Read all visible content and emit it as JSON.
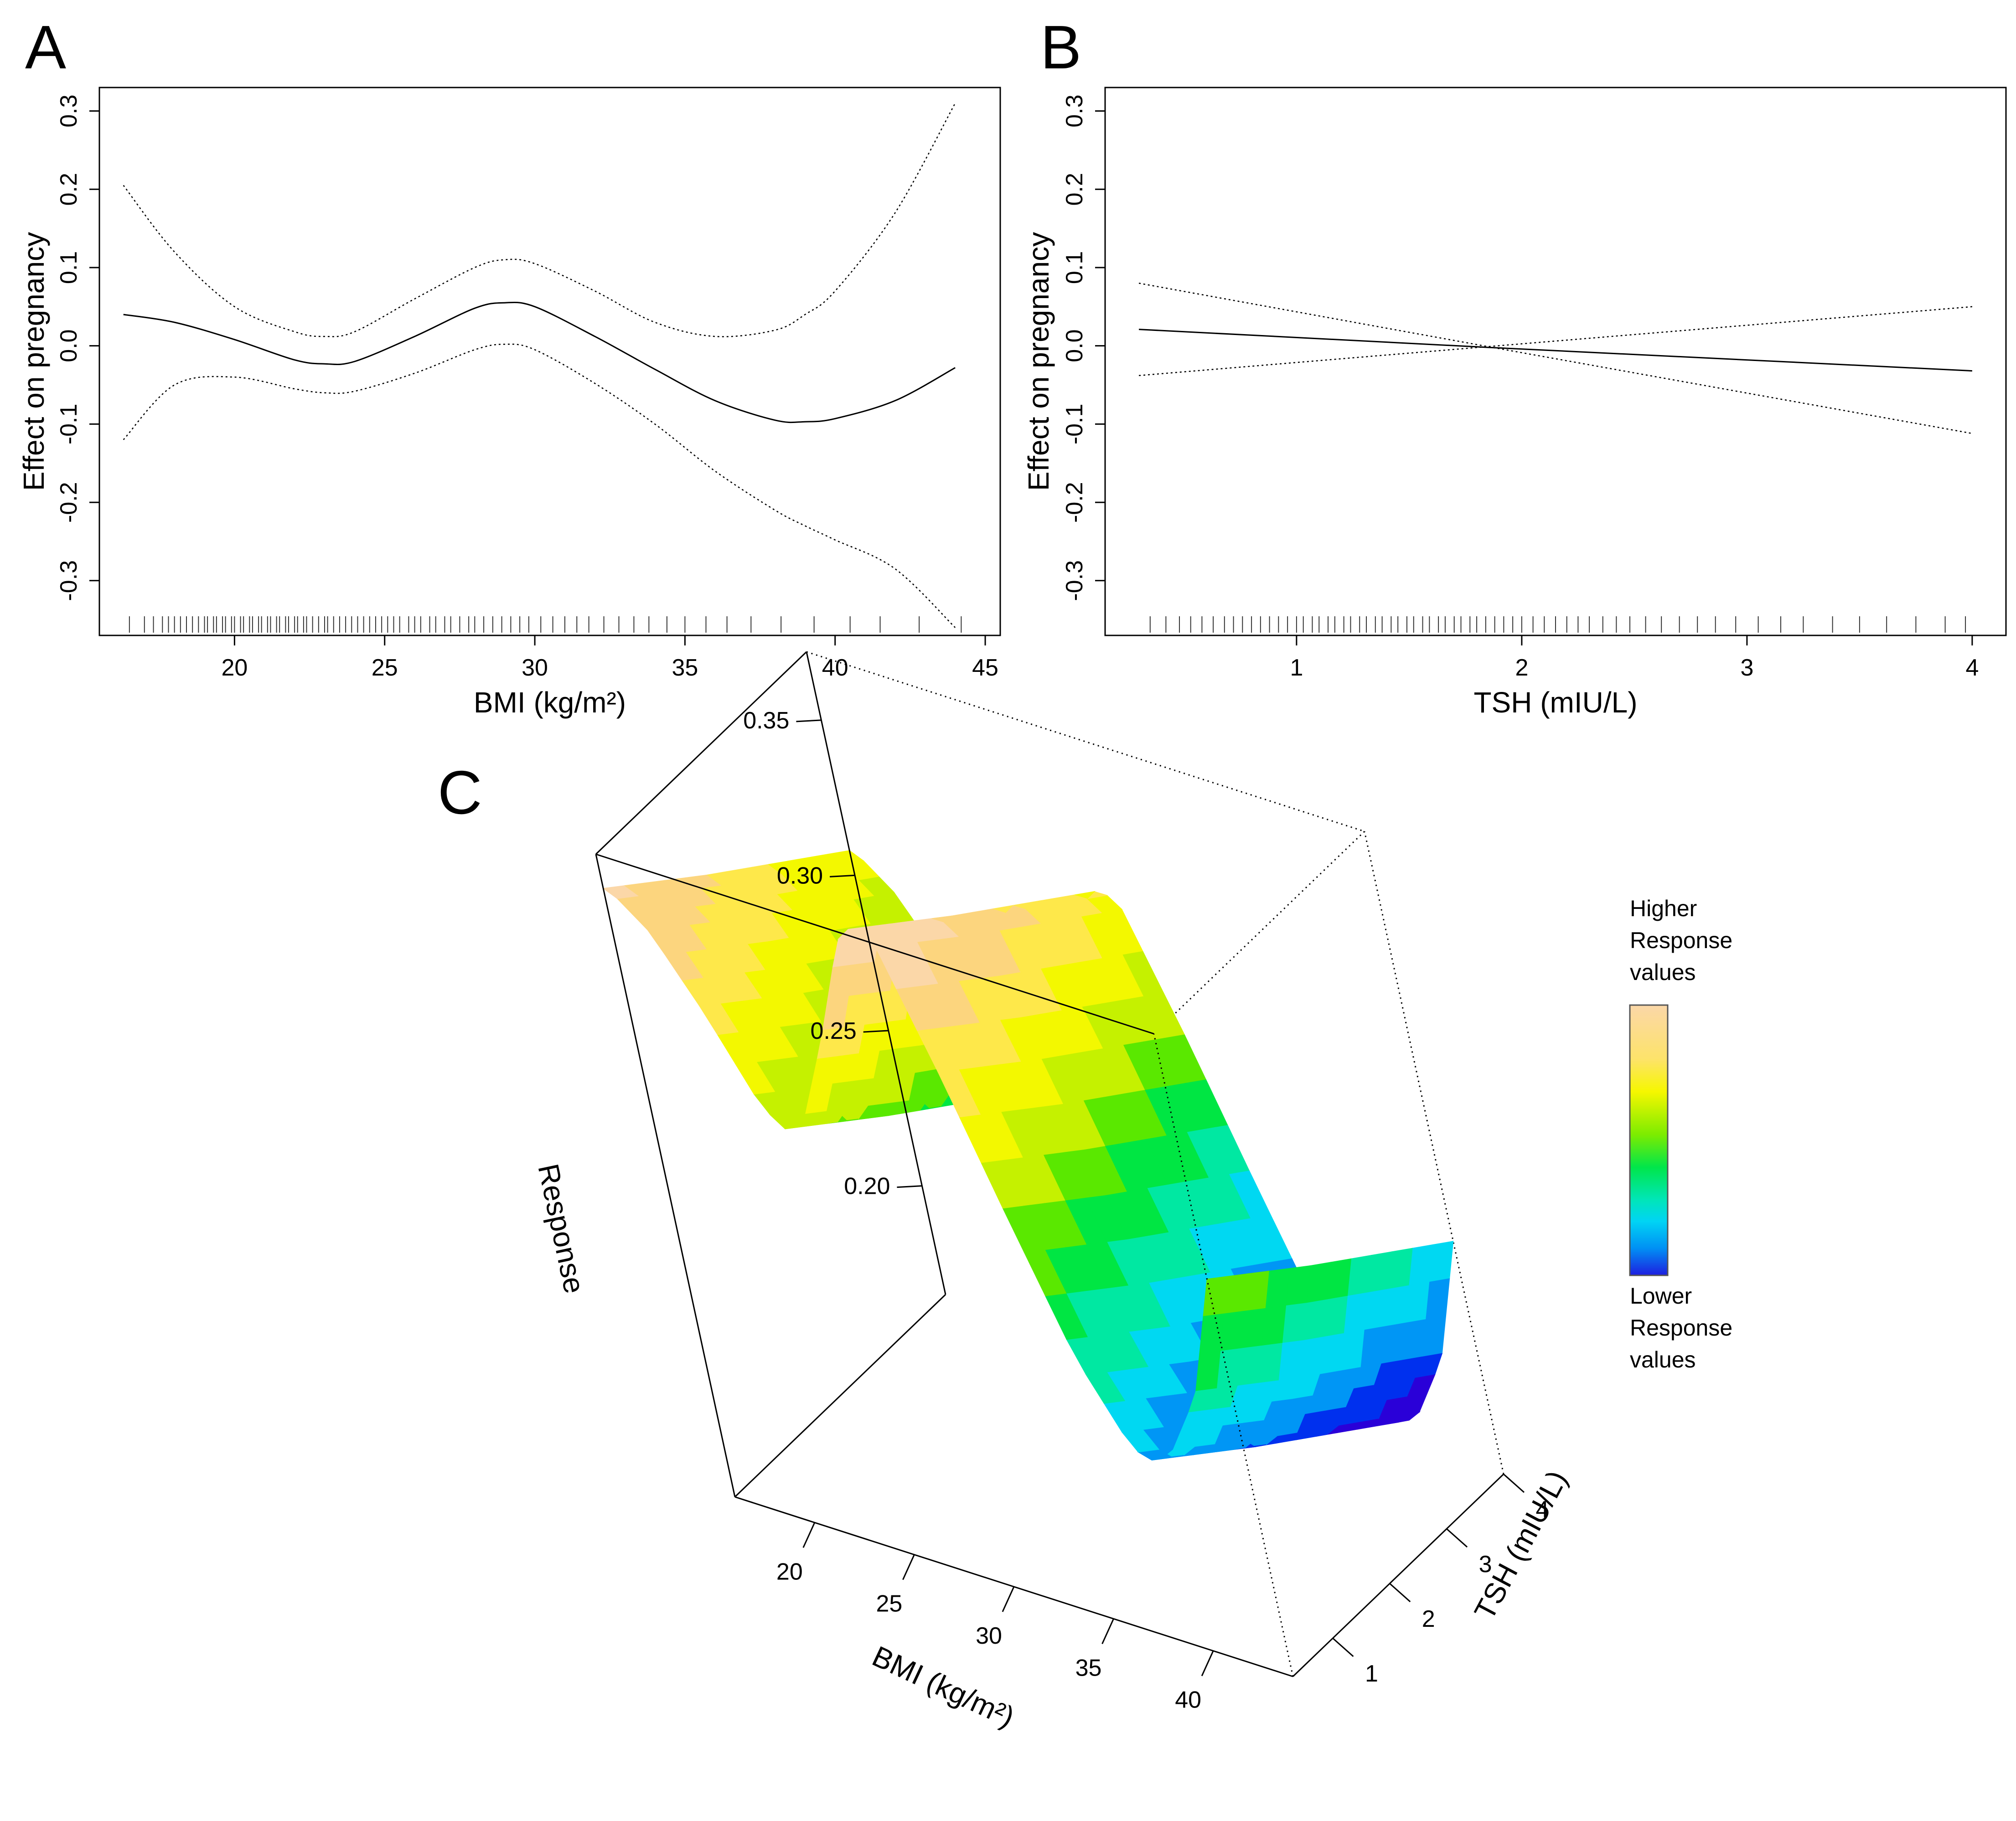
{
  "figure": {
    "panels": [
      {
        "id": "A"
      },
      {
        "id": "B"
      },
      {
        "id": "C"
      }
    ]
  },
  "chart_data": [
    {
      "panel": "A",
      "type": "line",
      "xlabel": "BMI (kg/m²)",
      "ylabel": "Effect on pregnancy",
      "xlim": [
        15.5,
        45.5
      ],
      "ylim": [
        -0.37,
        0.33
      ],
      "xticks": [
        20,
        25,
        30,
        35,
        40,
        45
      ],
      "yticks": [
        -0.3,
        -0.2,
        -0.1,
        0.0,
        0.1,
        0.2,
        0.3
      ],
      "ytick_labels": [
        "-0.3",
        "-0.2",
        "-0.1",
        "0.0",
        "0.1",
        "0.2",
        "0.3"
      ],
      "x": [
        16.3,
        18,
        20,
        22,
        23,
        24,
        26,
        28,
        29,
        30,
        32,
        34,
        36,
        38,
        39,
        40,
        42,
        44
      ],
      "series": [
        {
          "name": "estimate",
          "style": "solid",
          "values": [
            0.04,
            0.03,
            0.008,
            -0.018,
            -0.023,
            -0.02,
            0.012,
            0.048,
            0.055,
            0.05,
            0.012,
            -0.03,
            -0.07,
            -0.095,
            -0.097,
            -0.093,
            -0.07,
            -0.028
          ]
        },
        {
          "name": "upper 95% CI",
          "style": "dotted",
          "values": [
            0.205,
            0.12,
            0.05,
            0.018,
            0.012,
            0.018,
            0.06,
            0.1,
            0.11,
            0.105,
            0.07,
            0.03,
            0.012,
            0.02,
            0.04,
            0.07,
            0.17,
            0.31
          ]
        },
        {
          "name": "lower 95% CI",
          "style": "dotted",
          "values": [
            -0.12,
            -0.05,
            -0.04,
            -0.055,
            -0.06,
            -0.058,
            -0.035,
            -0.005,
            0.002,
            -0.005,
            -0.048,
            -0.1,
            -0.16,
            -0.21,
            -0.23,
            -0.248,
            -0.285,
            -0.36
          ]
        }
      ],
      "rug": [
        16.5,
        17.0,
        17.3,
        17.6,
        17.8,
        18.0,
        18.2,
        18.4,
        18.6,
        18.8,
        19.0,
        19.1,
        19.3,
        19.4,
        19.6,
        19.7,
        19.9,
        20.0,
        20.2,
        20.3,
        20.5,
        20.6,
        20.8,
        20.9,
        21.1,
        21.2,
        21.4,
        21.5,
        21.7,
        21.8,
        22.0,
        22.1,
        22.3,
        22.4,
        22.6,
        22.8,
        23.0,
        23.1,
        23.3,
        23.5,
        23.7,
        23.9,
        24.1,
        24.3,
        24.5,
        24.7,
        24.9,
        25.1,
        25.3,
        25.5,
        25.8,
        26.0,
        26.2,
        26.5,
        26.7,
        27.0,
        27.2,
        27.5,
        27.8,
        28.0,
        28.3,
        28.6,
        28.9,
        29.2,
        29.5,
        29.8,
        30.2,
        30.6,
        31.0,
        31.4,
        31.8,
        32.3,
        32.8,
        33.3,
        33.8,
        34.4,
        35.0,
        35.7,
        36.4,
        37.2,
        38.2,
        39.3,
        40.5,
        41.5,
        42.8,
        44.2
      ]
    },
    {
      "panel": "B",
      "type": "line",
      "xlabel": "TSH (mIU/L)",
      "ylabel": "Effect on pregnancy",
      "xlim": [
        0.15,
        4.15
      ],
      "ylim": [
        -0.37,
        0.33
      ],
      "xticks": [
        1,
        2,
        3,
        4
      ],
      "yticks": [
        -0.3,
        -0.2,
        -0.1,
        0.0,
        0.1,
        0.2,
        0.3
      ],
      "ytick_labels": [
        "-0.3",
        "-0.2",
        "-0.1",
        "0.0",
        "0.1",
        "0.2",
        "0.3"
      ],
      "x": [
        0.3,
        1.85,
        4.0
      ],
      "series": [
        {
          "name": "estimate",
          "style": "solid",
          "values": [
            0.021,
            -0.002,
            -0.032
          ]
        },
        {
          "name": "upper 95% CI",
          "style": "dotted",
          "values": [
            0.08,
            -0.001,
            0.05
          ]
        },
        {
          "name": "lower 95% CI",
          "style": "dotted",
          "values": [
            -0.038,
            -0.001,
            -0.112
          ]
        }
      ],
      "rug": [
        0.35,
        0.42,
        0.48,
        0.53,
        0.58,
        0.63,
        0.68,
        0.72,
        0.76,
        0.8,
        0.84,
        0.88,
        0.92,
        0.96,
        1.0,
        1.03,
        1.07,
        1.1,
        1.14,
        1.17,
        1.21,
        1.24,
        1.28,
        1.31,
        1.35,
        1.38,
        1.42,
        1.45,
        1.49,
        1.52,
        1.56,
        1.59,
        1.63,
        1.66,
        1.7,
        1.73,
        1.77,
        1.8,
        1.84,
        1.88,
        1.92,
        1.96,
        2.0,
        2.05,
        2.1,
        2.15,
        2.2,
        2.25,
        2.3,
        2.36,
        2.42,
        2.48,
        2.55,
        2.62,
        2.7,
        2.78,
        2.86,
        2.95,
        3.05,
        3.15,
        3.25,
        3.38,
        3.5,
        3.62,
        3.75,
        3.88,
        3.97
      ]
    },
    {
      "panel": "C",
      "type": "surface",
      "xlabel": "BMI (kg/m²)",
      "ylabel": "TSH (mIU/L)",
      "zlabel": "Response",
      "xlim": [
        16,
        44
      ],
      "ylim": [
        0.3,
        4.0
      ],
      "zlim": [
        0.165,
        0.372
      ],
      "xticks": [
        20,
        25,
        30,
        35,
        40
      ],
      "yticks": [
        1,
        2,
        3,
        4
      ],
      "zticks": [
        0.2,
        0.25,
        0.3,
        0.35
      ],
      "ztick_labels": [
        "0.20",
        "0.25",
        "0.30",
        "0.35"
      ],
      "description": "Response surface from the additive BMI and TSH effects",
      "bmi_effect": {
        "x": [
          16.3,
          18,
          20,
          22,
          23,
          24,
          26,
          28,
          29,
          30,
          32,
          34,
          36,
          38,
          39,
          40,
          42,
          44
        ],
        "values": [
          0.04,
          0.03,
          0.008,
          -0.018,
          -0.023,
          -0.02,
          0.012,
          0.048,
          0.055,
          0.05,
          0.012,
          -0.03,
          -0.07,
          -0.095,
          -0.097,
          -0.093,
          -0.07,
          -0.028
        ]
      },
      "tsh_effect": {
        "x": [
          0.3,
          1.85,
          4.0
        ],
        "values": [
          0.021,
          -0.002,
          -0.032
        ]
      },
      "legend": {
        "high": "Higher Response values",
        "low": "Lower Response values",
        "colors": [
          "#fbd7a8",
          "#fcd57e",
          "#fee84a",
          "#f3f800",
          "#c5f100",
          "#5ae800",
          "#00e643",
          "#00e8a2",
          "#00d8f2",
          "#0096f5",
          "#0030ee",
          "#2a00d8"
        ]
      }
    }
  ],
  "legend_lines": {
    "high": [
      "Higher",
      "Response",
      "values"
    ],
    "low": [
      "Lower",
      "Response",
      "values"
    ]
  }
}
